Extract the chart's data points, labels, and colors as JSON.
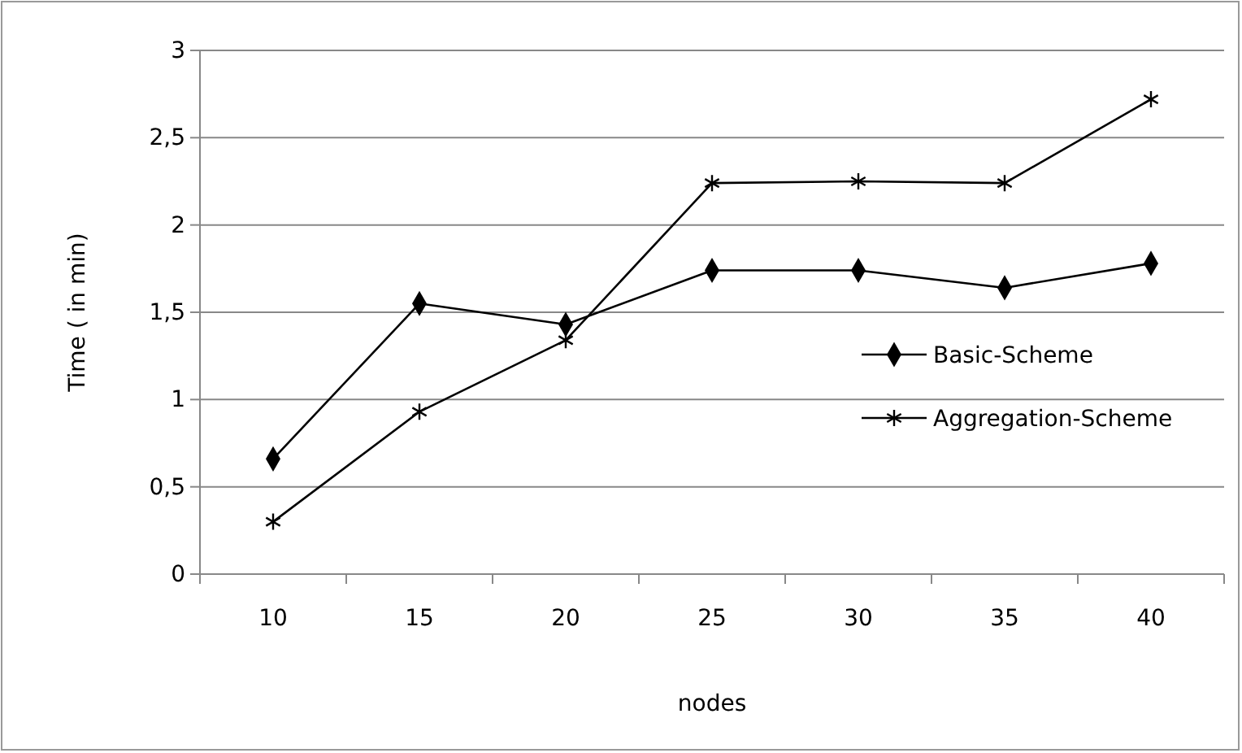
{
  "chart_data": {
    "type": "line",
    "xlabel": "nodes",
    "ylabel": "Time ( in min)",
    "categories": [
      "10",
      "15",
      "20",
      "25",
      "30",
      "35",
      "40"
    ],
    "series": [
      {
        "name": "Basic-Scheme",
        "color": "#000000",
        "marker": "diamond",
        "values": [
          0.66,
          1.55,
          1.43,
          1.74,
          1.74,
          1.64,
          1.78
        ]
      },
      {
        "name": "Aggregation-Scheme",
        "color": "#000000",
        "marker": "cross",
        "values": [
          0.3,
          0.93,
          1.34,
          2.24,
          2.25,
          2.24,
          2.72
        ]
      }
    ],
    "ylim": [
      0,
      3
    ],
    "yticks": [
      0,
      {
        "value": 0.5,
        "label": "0,5"
      },
      1,
      {
        "value": 1.5,
        "label": "1,5"
      },
      2,
      {
        "value": 2.5,
        "label": "2,5"
      },
      3
    ],
    "grid": "y",
    "legend": "right",
    "line_style": "solid"
  }
}
